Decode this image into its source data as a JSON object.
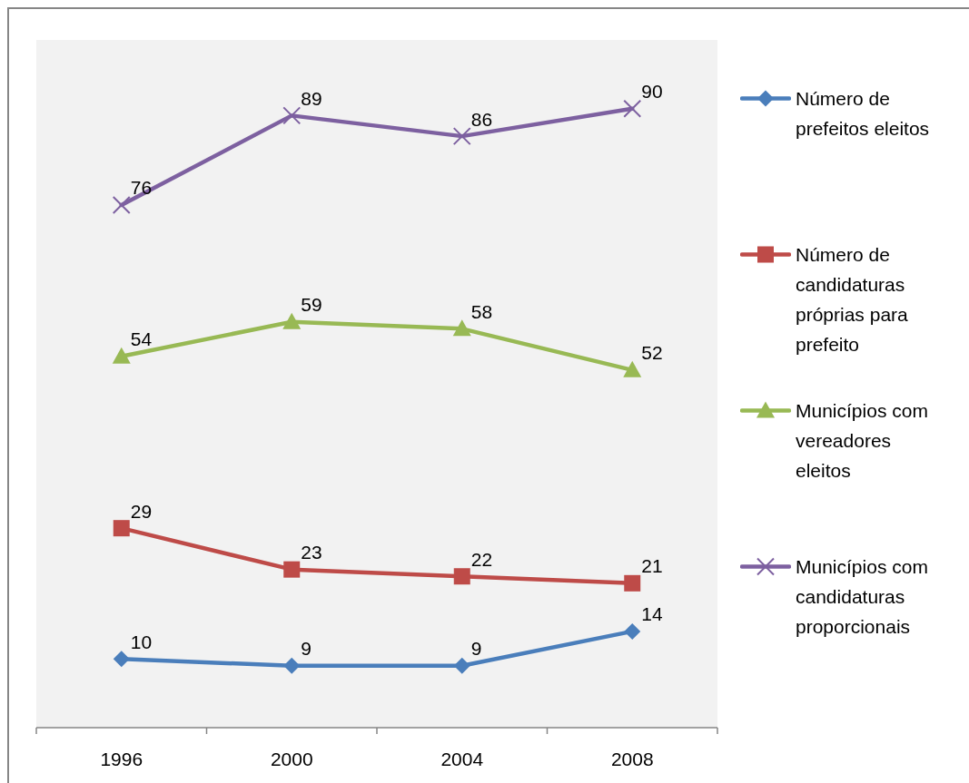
{
  "chart_data": {
    "type": "line",
    "categories": [
      "1996",
      "2000",
      "2004",
      "2008"
    ],
    "series": [
      {
        "name": "Número de prefeitos eleitos",
        "color": "#4a7ebb",
        "marker": "diamond",
        "values": [
          10,
          9,
          9,
          14
        ]
      },
      {
        "name": "Número de candidaturas próprias para prefeito",
        "color": "#be4b48",
        "marker": "square",
        "values": [
          29,
          23,
          22,
          21
        ]
      },
      {
        "name": "Municípios com vereadores eleitos",
        "color": "#98b954",
        "marker": "triangle",
        "values": [
          54,
          59,
          58,
          52
        ]
      },
      {
        "name": "Municípios com candidaturas proporcionais",
        "color": "#7d60a0",
        "marker": "cross",
        "values": [
          76,
          89,
          86,
          90
        ]
      }
    ],
    "data_labels": true,
    "legend": "right",
    "tick_labels": "x"
  }
}
